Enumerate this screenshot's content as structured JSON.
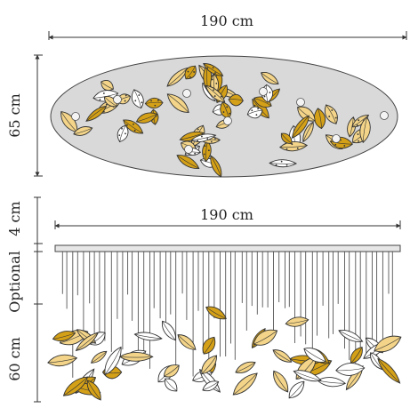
{
  "dimensions": {
    "top_width": "190 cm",
    "top_height": "65 cm",
    "side_canopy": "4 cm",
    "side_width": "190 cm",
    "side_optional": "Optional",
    "side_drop": "60 cm"
  },
  "colors": {
    "gold_dark": "#d4a017",
    "gold_light": "#f3d488",
    "white": "#ffffff",
    "ellipse_fill": "#d9d9d9",
    "canopy_fill": "#e6e6e6"
  }
}
